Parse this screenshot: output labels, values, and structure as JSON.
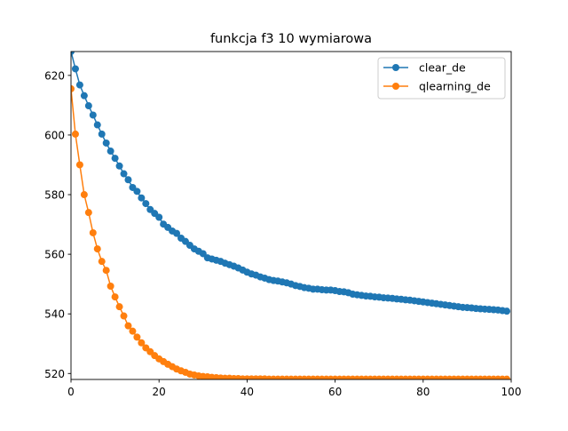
{
  "chart_data": {
    "type": "line",
    "title": "funkcja f3 10 wymiarowa",
    "xlabel": "",
    "ylabel": "",
    "xlim": [
      0,
      100
    ],
    "ylim": [
      518,
      628
    ],
    "x_ticks": [
      0,
      20,
      40,
      60,
      80,
      100
    ],
    "y_ticks": [
      520,
      540,
      560,
      580,
      600,
      620
    ],
    "grid": false,
    "legend_position": "top-right",
    "x": [
      0,
      1,
      2,
      3,
      4,
      5,
      6,
      7,
      8,
      9,
      10,
      11,
      12,
      13,
      14,
      15,
      16,
      17,
      18,
      19,
      20,
      21,
      22,
      23,
      24,
      25,
      26,
      27,
      28,
      29,
      30,
      31,
      32,
      33,
      34,
      35,
      36,
      37,
      38,
      39,
      40,
      41,
      42,
      43,
      44,
      45,
      46,
      47,
      48,
      49,
      50,
      51,
      52,
      53,
      54,
      55,
      56,
      57,
      58,
      59,
      60,
      61,
      62,
      63,
      64,
      65,
      66,
      67,
      68,
      69,
      70,
      71,
      72,
      73,
      74,
      75,
      76,
      77,
      78,
      79,
      80,
      81,
      82,
      83,
      84,
      85,
      86,
      87,
      88,
      89,
      90,
      91,
      92,
      93,
      94,
      95,
      96,
      97,
      98,
      99
    ],
    "series": [
      {
        "name": "clear_de",
        "color": "#1f77b4",
        "values": [
          628.0,
          622.2,
          616.8,
          613.2,
          609.8,
          606.7,
          603.4,
          600.3,
          597.3,
          594.6,
          592.2,
          589.6,
          587.0,
          585.0,
          582.4,
          581.1,
          578.9,
          577.0,
          575.0,
          573.7,
          572.4,
          570.1,
          569.0,
          567.8,
          567.0,
          565.4,
          564.3,
          563.0,
          561.8,
          561.0,
          560.2,
          558.8,
          558.4,
          558.0,
          557.6,
          557.0,
          556.5,
          556.0,
          555.4,
          554.7,
          554.0,
          553.4,
          553.0,
          552.4,
          552.0,
          551.5,
          551.2,
          551.0,
          550.7,
          550.4,
          550.0,
          549.5,
          549.2,
          548.8,
          548.6,
          548.3,
          548.3,
          548.1,
          548.0,
          548.0,
          547.8,
          547.5,
          547.4,
          547.1,
          546.6,
          546.4,
          546.2,
          546.0,
          545.9,
          545.7,
          545.6,
          545.4,
          545.3,
          545.2,
          545.0,
          544.9,
          544.7,
          544.6,
          544.4,
          544.2,
          544.0,
          543.8,
          543.6,
          543.4,
          543.2,
          543.0,
          542.8,
          542.6,
          542.4,
          542.2,
          542.1,
          542.0,
          541.8,
          541.7,
          541.6,
          541.5,
          541.4,
          541.3,
          541.1,
          540.9
        ]
      },
      {
        "name": "qlearning_de",
        "color": "#ff7f0e",
        "values": [
          615.5,
          600.3,
          590.0,
          580.0,
          574.0,
          567.2,
          561.8,
          557.6,
          554.6,
          549.3,
          545.7,
          542.4,
          539.3,
          536.0,
          534.2,
          532.2,
          530.3,
          528.6,
          527.3,
          526.0,
          524.9,
          524.0,
          523.1,
          522.3,
          521.5,
          520.9,
          520.4,
          519.8,
          519.5,
          519.2,
          519.0,
          518.9,
          518.7,
          518.6,
          518.5,
          518.4,
          518.4,
          518.3,
          518.3,
          518.2,
          518.2,
          518.2,
          518.2,
          518.2,
          518.2,
          518.1,
          518.1,
          518.1,
          518.1,
          518.1,
          518.1,
          518.1,
          518.1,
          518.1,
          518.1,
          518.1,
          518.1,
          518.1,
          518.1,
          518.1,
          518.1,
          518.1,
          518.1,
          518.1,
          518.1,
          518.1,
          518.1,
          518.1,
          518.1,
          518.1,
          518.1,
          518.1,
          518.1,
          518.1,
          518.1,
          518.1,
          518.1,
          518.1,
          518.1,
          518.1,
          518.1,
          518.1,
          518.1,
          518.1,
          518.1,
          518.1,
          518.1,
          518.1,
          518.1,
          518.1,
          518.1,
          518.1,
          518.1,
          518.1,
          518.1,
          518.1,
          518.1,
          518.1,
          518.1,
          518.1
        ]
      }
    ]
  }
}
